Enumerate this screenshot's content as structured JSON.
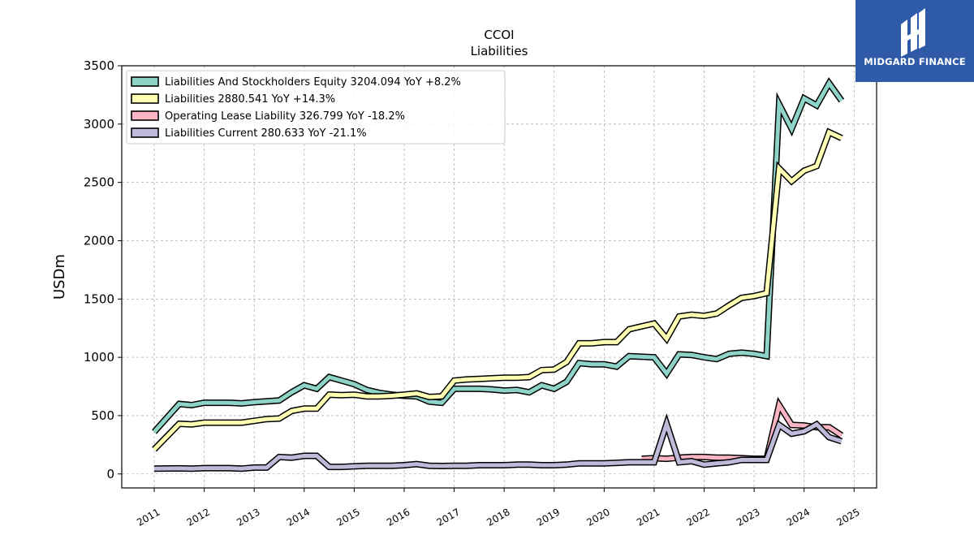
{
  "brand": {
    "name": "MIDGARD FINANCE",
    "logo_icon": "midgard-h-icon",
    "bg_color": "#2f5aa8"
  },
  "chart_data": {
    "type": "line",
    "title": "CCOI",
    "subtitle": "Liabilities",
    "xlabel": "",
    "ylabel": "USDm",
    "ylim": [
      -120,
      3500
    ],
    "xlim": [
      2010.35,
      2025.45
    ],
    "yticks": [
      0,
      500,
      1000,
      1500,
      2000,
      2500,
      3000,
      3500
    ],
    "xticks": [
      2011,
      2012,
      2013,
      2014,
      2015,
      2016,
      2017,
      2018,
      2019,
      2020,
      2021,
      2022,
      2023,
      2024,
      2025
    ],
    "grid": true,
    "legend_position": "top-left",
    "series": [
      {
        "name": "Liabilities And Stockholders Equity",
        "legend": "Liabilities And Stockholders Equity  3204.094 YoY +8.2%",
        "color": "#8dd3c7",
        "points": [
          [
            2011.0,
            360
          ],
          [
            2011.5,
            600
          ],
          [
            2011.75,
            590
          ],
          [
            2012.0,
            610
          ],
          [
            2012.5,
            610
          ],
          [
            2012.75,
            605
          ],
          [
            2013.0,
            615
          ],
          [
            2013.5,
            630
          ],
          [
            2013.75,
            700
          ],
          [
            2014.0,
            760
          ],
          [
            2014.25,
            730
          ],
          [
            2014.5,
            830
          ],
          [
            2014.75,
            800
          ],
          [
            2015.0,
            770
          ],
          [
            2015.25,
            720
          ],
          [
            2015.5,
            695
          ],
          [
            2015.75,
            680
          ],
          [
            2016.0,
            670
          ],
          [
            2016.25,
            665
          ],
          [
            2016.5,
            620
          ],
          [
            2016.75,
            610
          ],
          [
            2017.0,
            730
          ],
          [
            2017.25,
            730
          ],
          [
            2017.5,
            730
          ],
          [
            2017.75,
            725
          ],
          [
            2018.0,
            715
          ],
          [
            2018.25,
            720
          ],
          [
            2018.5,
            700
          ],
          [
            2018.75,
            760
          ],
          [
            2019.0,
            730
          ],
          [
            2019.25,
            790
          ],
          [
            2019.5,
            950
          ],
          [
            2019.75,
            940
          ],
          [
            2020.0,
            940
          ],
          [
            2020.25,
            920
          ],
          [
            2020.5,
            1010
          ],
          [
            2020.75,
            1005
          ],
          [
            2021.0,
            1000
          ],
          [
            2021.25,
            860
          ],
          [
            2021.5,
            1025
          ],
          [
            2021.75,
            1020
          ],
          [
            2022.0,
            1000
          ],
          [
            2022.25,
            985
          ],
          [
            2022.5,
            1030
          ],
          [
            2022.75,
            1040
          ],
          [
            2023.0,
            1030
          ],
          [
            2023.25,
            1010
          ],
          [
            2023.5,
            3170
          ],
          [
            2023.75,
            2960
          ],
          [
            2024.0,
            3220
          ],
          [
            2024.25,
            3160
          ],
          [
            2024.5,
            3350
          ],
          [
            2024.75,
            3200
          ]
        ]
      },
      {
        "name": "Liabilities",
        "legend": "Liabilities  2880.541 YoY +14.3%",
        "color": "#ffffb3",
        "points": [
          [
            2011.0,
            210
          ],
          [
            2011.5,
            430
          ],
          [
            2011.75,
            425
          ],
          [
            2012.0,
            440
          ],
          [
            2012.5,
            440
          ],
          [
            2012.75,
            440
          ],
          [
            2013.0,
            455
          ],
          [
            2013.25,
            470
          ],
          [
            2013.5,
            475
          ],
          [
            2013.75,
            540
          ],
          [
            2014.0,
            560
          ],
          [
            2014.25,
            560
          ],
          [
            2014.5,
            680
          ],
          [
            2014.75,
            675
          ],
          [
            2015.0,
            680
          ],
          [
            2015.25,
            665
          ],
          [
            2015.5,
            665
          ],
          [
            2015.75,
            670
          ],
          [
            2016.0,
            680
          ],
          [
            2016.25,
            690
          ],
          [
            2016.5,
            660
          ],
          [
            2016.75,
            665
          ],
          [
            2017.0,
            800
          ],
          [
            2017.25,
            810
          ],
          [
            2017.5,
            815
          ],
          [
            2017.75,
            820
          ],
          [
            2018.0,
            825
          ],
          [
            2018.25,
            825
          ],
          [
            2018.5,
            830
          ],
          [
            2018.75,
            890
          ],
          [
            2019.0,
            895
          ],
          [
            2019.25,
            960
          ],
          [
            2019.5,
            1120
          ],
          [
            2019.75,
            1120
          ],
          [
            2020.0,
            1130
          ],
          [
            2020.25,
            1130
          ],
          [
            2020.5,
            1240
          ],
          [
            2020.75,
            1265
          ],
          [
            2021.0,
            1290
          ],
          [
            2021.25,
            1160
          ],
          [
            2021.5,
            1350
          ],
          [
            2021.75,
            1365
          ],
          [
            2022.0,
            1355
          ],
          [
            2022.25,
            1375
          ],
          [
            2022.5,
            1445
          ],
          [
            2022.75,
            1510
          ],
          [
            2023.0,
            1525
          ],
          [
            2023.25,
            1550
          ],
          [
            2023.5,
            2620
          ],
          [
            2023.75,
            2510
          ],
          [
            2024.0,
            2600
          ],
          [
            2024.25,
            2640
          ],
          [
            2024.5,
            2930
          ],
          [
            2024.75,
            2880
          ]
        ]
      },
      {
        "name": "Operating Lease Liability",
        "legend": "Operating Lease Liability  326.799 YoY -18.2%",
        "color": "#fbb4c4",
        "points": [
          [
            2020.75,
            130
          ],
          [
            2021.0,
            135
          ],
          [
            2021.25,
            130
          ],
          [
            2021.5,
            140
          ],
          [
            2021.75,
            145
          ],
          [
            2022.0,
            145
          ],
          [
            2022.25,
            140
          ],
          [
            2022.5,
            140
          ],
          [
            2022.75,
            135
          ],
          [
            2023.0,
            130
          ],
          [
            2023.25,
            130
          ],
          [
            2023.5,
            590
          ],
          [
            2023.75,
            420
          ],
          [
            2024.0,
            415
          ],
          [
            2024.25,
            400
          ],
          [
            2024.5,
            400
          ],
          [
            2024.75,
            330
          ]
        ]
      },
      {
        "name": "Liabilities Current",
        "legend": "Liabilities Current  280.633 YoY -21.1%",
        "color": "#bebada",
        "points": [
          [
            2011.0,
            45
          ],
          [
            2011.5,
            48
          ],
          [
            2011.75,
            45
          ],
          [
            2012.0,
            50
          ],
          [
            2012.5,
            50
          ],
          [
            2012.75,
            45
          ],
          [
            2013.0,
            55
          ],
          [
            2013.25,
            55
          ],
          [
            2013.5,
            145
          ],
          [
            2013.75,
            140
          ],
          [
            2014.0,
            155
          ],
          [
            2014.25,
            155
          ],
          [
            2014.5,
            60
          ],
          [
            2014.75,
            60
          ],
          [
            2015.0,
            65
          ],
          [
            2015.25,
            70
          ],
          [
            2015.5,
            70
          ],
          [
            2015.75,
            70
          ],
          [
            2016.0,
            75
          ],
          [
            2016.25,
            85
          ],
          [
            2016.5,
            70
          ],
          [
            2016.75,
            68
          ],
          [
            2017.0,
            70
          ],
          [
            2017.25,
            70
          ],
          [
            2017.5,
            75
          ],
          [
            2017.75,
            75
          ],
          [
            2018.0,
            75
          ],
          [
            2018.25,
            80
          ],
          [
            2018.5,
            80
          ],
          [
            2018.75,
            75
          ],
          [
            2019.0,
            75
          ],
          [
            2019.25,
            80
          ],
          [
            2019.5,
            90
          ],
          [
            2019.75,
            90
          ],
          [
            2020.0,
            90
          ],
          [
            2020.25,
            95
          ],
          [
            2020.5,
            100
          ],
          [
            2020.75,
            100
          ],
          [
            2021.0,
            100
          ],
          [
            2021.25,
            430
          ],
          [
            2021.5,
            100
          ],
          [
            2021.75,
            110
          ],
          [
            2022.0,
            80
          ],
          [
            2022.25,
            90
          ],
          [
            2022.5,
            100
          ],
          [
            2022.75,
            120
          ],
          [
            2023.0,
            120
          ],
          [
            2023.25,
            120
          ],
          [
            2023.5,
            420
          ],
          [
            2023.75,
            345
          ],
          [
            2024.0,
            365
          ],
          [
            2024.25,
            425
          ],
          [
            2024.5,
            315
          ],
          [
            2024.75,
            280
          ]
        ]
      }
    ]
  }
}
